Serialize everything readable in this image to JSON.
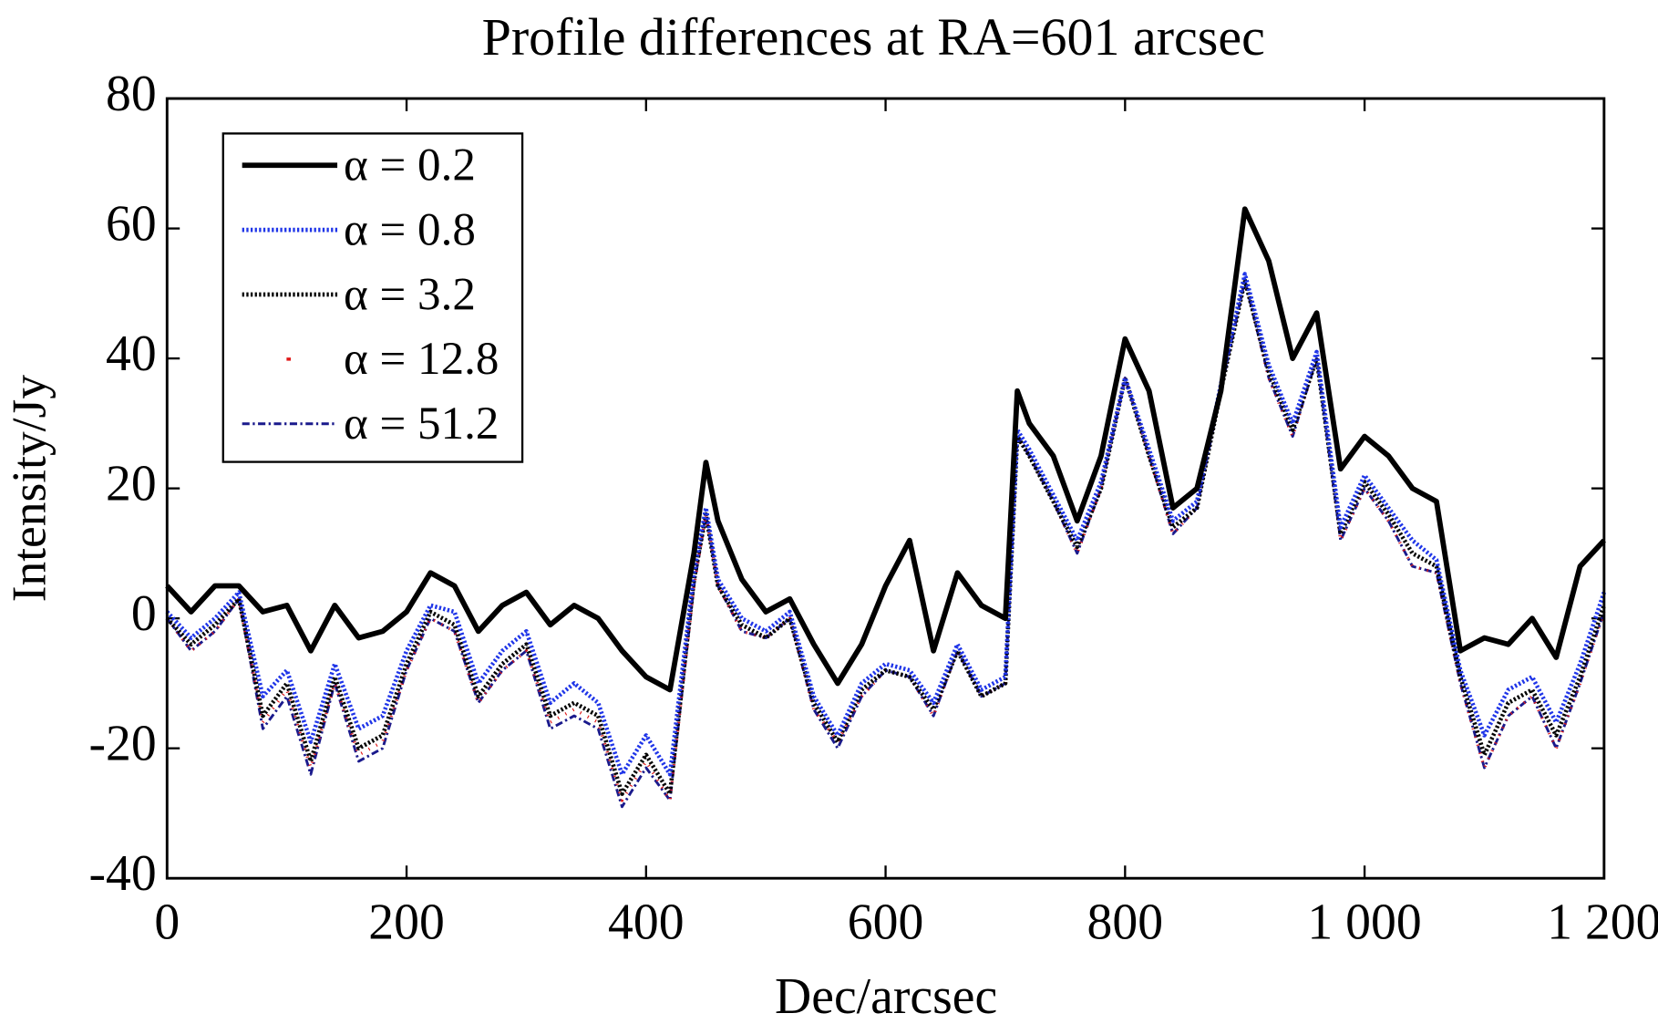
{
  "chart_data": {
    "type": "line",
    "title": "Profile differences at RA=601 arcsec",
    "x_label": "Dec/arcsec",
    "y_label": "Intensity/Jy",
    "x": [
      0,
      20,
      40,
      60,
      80,
      100,
      120,
      140,
      160,
      180,
      200,
      220,
      240,
      260,
      280,
      300,
      320,
      340,
      360,
      380,
      400,
      420,
      440,
      450,
      460,
      480,
      500,
      520,
      540,
      560,
      580,
      600,
      620,
      640,
      660,
      680,
      700,
      710,
      720,
      740,
      760,
      780,
      800,
      820,
      840,
      860,
      880,
      900,
      920,
      940,
      960,
      980,
      1000,
      1020,
      1040,
      1060,
      1080,
      1100,
      1120,
      1140,
      1160,
      1180,
      1200
    ],
    "series": [
      {
        "name": "α = 0.2",
        "color": "#000000",
        "style": "solid",
        "values": [
          5,
          1,
          5,
          5,
          1,
          2,
          -5,
          2,
          -3,
          -2,
          1,
          7,
          5,
          -2,
          2,
          4,
          -1,
          2,
          0,
          -5,
          -9,
          -11,
          10,
          24,
          15,
          6,
          1,
          3,
          -4,
          -10,
          -4,
          5,
          12,
          -5,
          7,
          2,
          0,
          35,
          30,
          25,
          15,
          25,
          43,
          35,
          17,
          20,
          35,
          63,
          55,
          40,
          47,
          23,
          28,
          25,
          20,
          18,
          -5,
          -3,
          -4,
          0,
          -6,
          8,
          12
        ]
      },
      {
        "name": "α = 0.8",
        "color": "#1f35e8",
        "style": "dotted",
        "values": [
          1,
          -3,
          0,
          4,
          -12,
          -8,
          -19,
          -7,
          -17,
          -15,
          -5,
          2,
          1,
          -10,
          -5,
          -2,
          -13,
          -10,
          -13,
          -24,
          -18,
          -24,
          7,
          17,
          6,
          0,
          -2,
          1,
          -12,
          -18,
          -10,
          -7,
          -8,
          -13,
          -4,
          -11,
          -9,
          29,
          26,
          19,
          12,
          21,
          37,
          26,
          15,
          18,
          36,
          53,
          39,
          30,
          41,
          14,
          22,
          17,
          12,
          9,
          -8,
          -18,
          -11,
          -9,
          -16,
          -7,
          4
        ]
      },
      {
        "name": "α = 3.2",
        "color": "#000000",
        "style": "dotted",
        "values": [
          0,
          -4,
          -1,
          3,
          -15,
          -10,
          -22,
          -9,
          -20,
          -18,
          -7,
          1,
          -1,
          -12,
          -7,
          -4,
          -15,
          -13,
          -15,
          -27,
          -21,
          -27,
          6,
          16,
          5,
          -1,
          -3,
          0,
          -13,
          -19,
          -11,
          -8,
          -9,
          -14,
          -5,
          -12,
          -10,
          28,
          25,
          18,
          11,
          20,
          37,
          25,
          14,
          17,
          35,
          52,
          38,
          29,
          40,
          13,
          21,
          16,
          10,
          8,
          -9,
          -21,
          -13,
          -11,
          -18,
          -9,
          2
        ]
      },
      {
        "name": "α = 12.8",
        "color": "#e01818",
        "style": "dots",
        "values": [
          0,
          -5,
          -2,
          3,
          -16,
          -11,
          -23,
          -10,
          -21,
          -19,
          -8,
          0,
          -2,
          -13,
          -8,
          -5,
          -16,
          -14,
          -16,
          -28,
          -22,
          -28,
          5,
          16,
          5,
          -2,
          -3,
          0,
          -14,
          -19,
          -12,
          -8,
          -9,
          -15,
          -5,
          -12,
          -10,
          28,
          25,
          18,
          10,
          20,
          37,
          25,
          13,
          17,
          35,
          52,
          37,
          28,
          40,
          12,
          20,
          15,
          8,
          7,
          -10,
          -23,
          -15,
          -12,
          -20,
          -10,
          1
        ]
      },
      {
        "name": "α = 51.2",
        "color": "#1a1a8c",
        "style": "dashdot",
        "values": [
          0,
          -5,
          -2,
          3,
          -17,
          -12,
          -24,
          -10,
          -22,
          -20,
          -8,
          0,
          -2,
          -13,
          -8,
          -5,
          -17,
          -15,
          -17,
          -29,
          -23,
          -28,
          5,
          16,
          5,
          -2,
          -3,
          0,
          -14,
          -20,
          -12,
          -8,
          -9,
          -15,
          -5,
          -12,
          -10,
          28,
          25,
          18,
          10,
          20,
          37,
          25,
          13,
          17,
          35,
          52,
          37,
          28,
          40,
          12,
          20,
          15,
          8,
          7,
          -10,
          -23,
          -15,
          -12,
          -20,
          -10,
          1
        ]
      }
    ],
    "xlim": [
      0,
      1200
    ],
    "xticks": [
      0,
      200,
      400,
      600,
      800,
      {
        "value": 1000,
        "label": "1 000"
      },
      {
        "value": 1200,
        "label": "1 200"
      }
    ],
    "ylim": [
      -40,
      80
    ],
    "yticks": [
      -40,
      -20,
      0,
      20,
      40,
      60,
      80
    ],
    "grid": false,
    "legend": "upper left"
  }
}
